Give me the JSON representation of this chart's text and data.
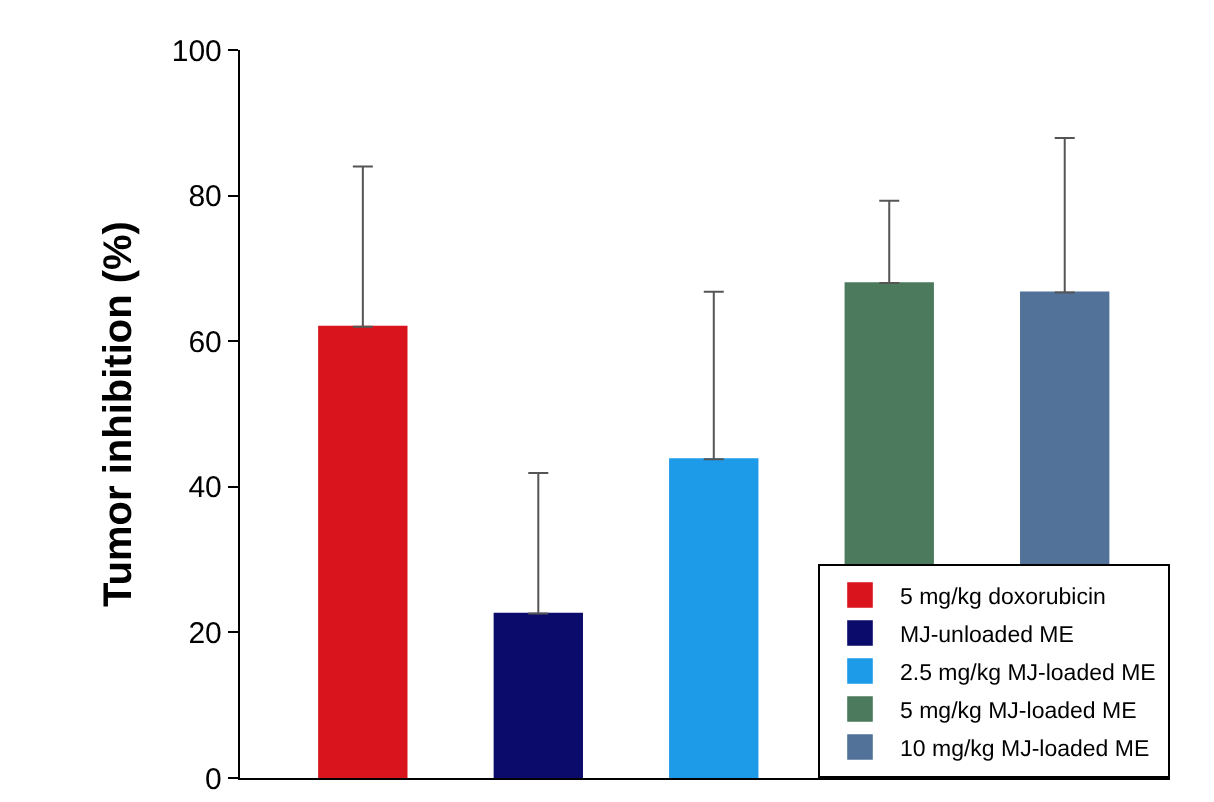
{
  "chart_data": {
    "type": "bar",
    "ylabel": "Tumor inhibition (%)",
    "categories": [
      null,
      null,
      null,
      null,
      null
    ],
    "series": [
      {
        "name": "5 mg/kg doxorubicin",
        "color": "#d9141c",
        "values": [
          62,
          null,
          null,
          null,
          null
        ],
        "errors": [
          [
            62,
            84
          ],
          null,
          null,
          null,
          null
        ]
      },
      {
        "name": "MJ-unloaded ME",
        "color": "#0b0b6b",
        "values": [
          null,
          22.6,
          null,
          null,
          null
        ],
        "errors": [
          null,
          [
            22.6,
            41.9
          ],
          null,
          null,
          null
        ]
      },
      {
        "name": "2.5 mg/kg MJ-loaded ME",
        "color": "#1e9be8",
        "values": [
          null,
          null,
          43.8,
          null,
          null
        ],
        "errors": [
          null,
          null,
          [
            43.8,
            66.8
          ],
          null,
          null
        ]
      },
      {
        "name": "5 mg/kg MJ-loaded ME",
        "color": "#4b7a5c",
        "values": [
          null,
          null,
          null,
          68,
          null
        ],
        "errors": [
          null,
          null,
          null,
          [
            68,
            79.3
          ],
          null
        ]
      },
      {
        "name": "10 mg/kg MJ-loaded ME",
        "color": "#52729a",
        "values": [
          null,
          null,
          null,
          null,
          66.7
        ],
        "errors": [
          null,
          null,
          null,
          null,
          [
            66.7,
            87.9
          ]
        ]
      }
    ],
    "ylim": [
      0,
      100
    ],
    "yticks": [
      0,
      20,
      40,
      60,
      80,
      100
    ],
    "grid": false,
    "legend": "bottom right",
    "tick_labels": "y"
  }
}
